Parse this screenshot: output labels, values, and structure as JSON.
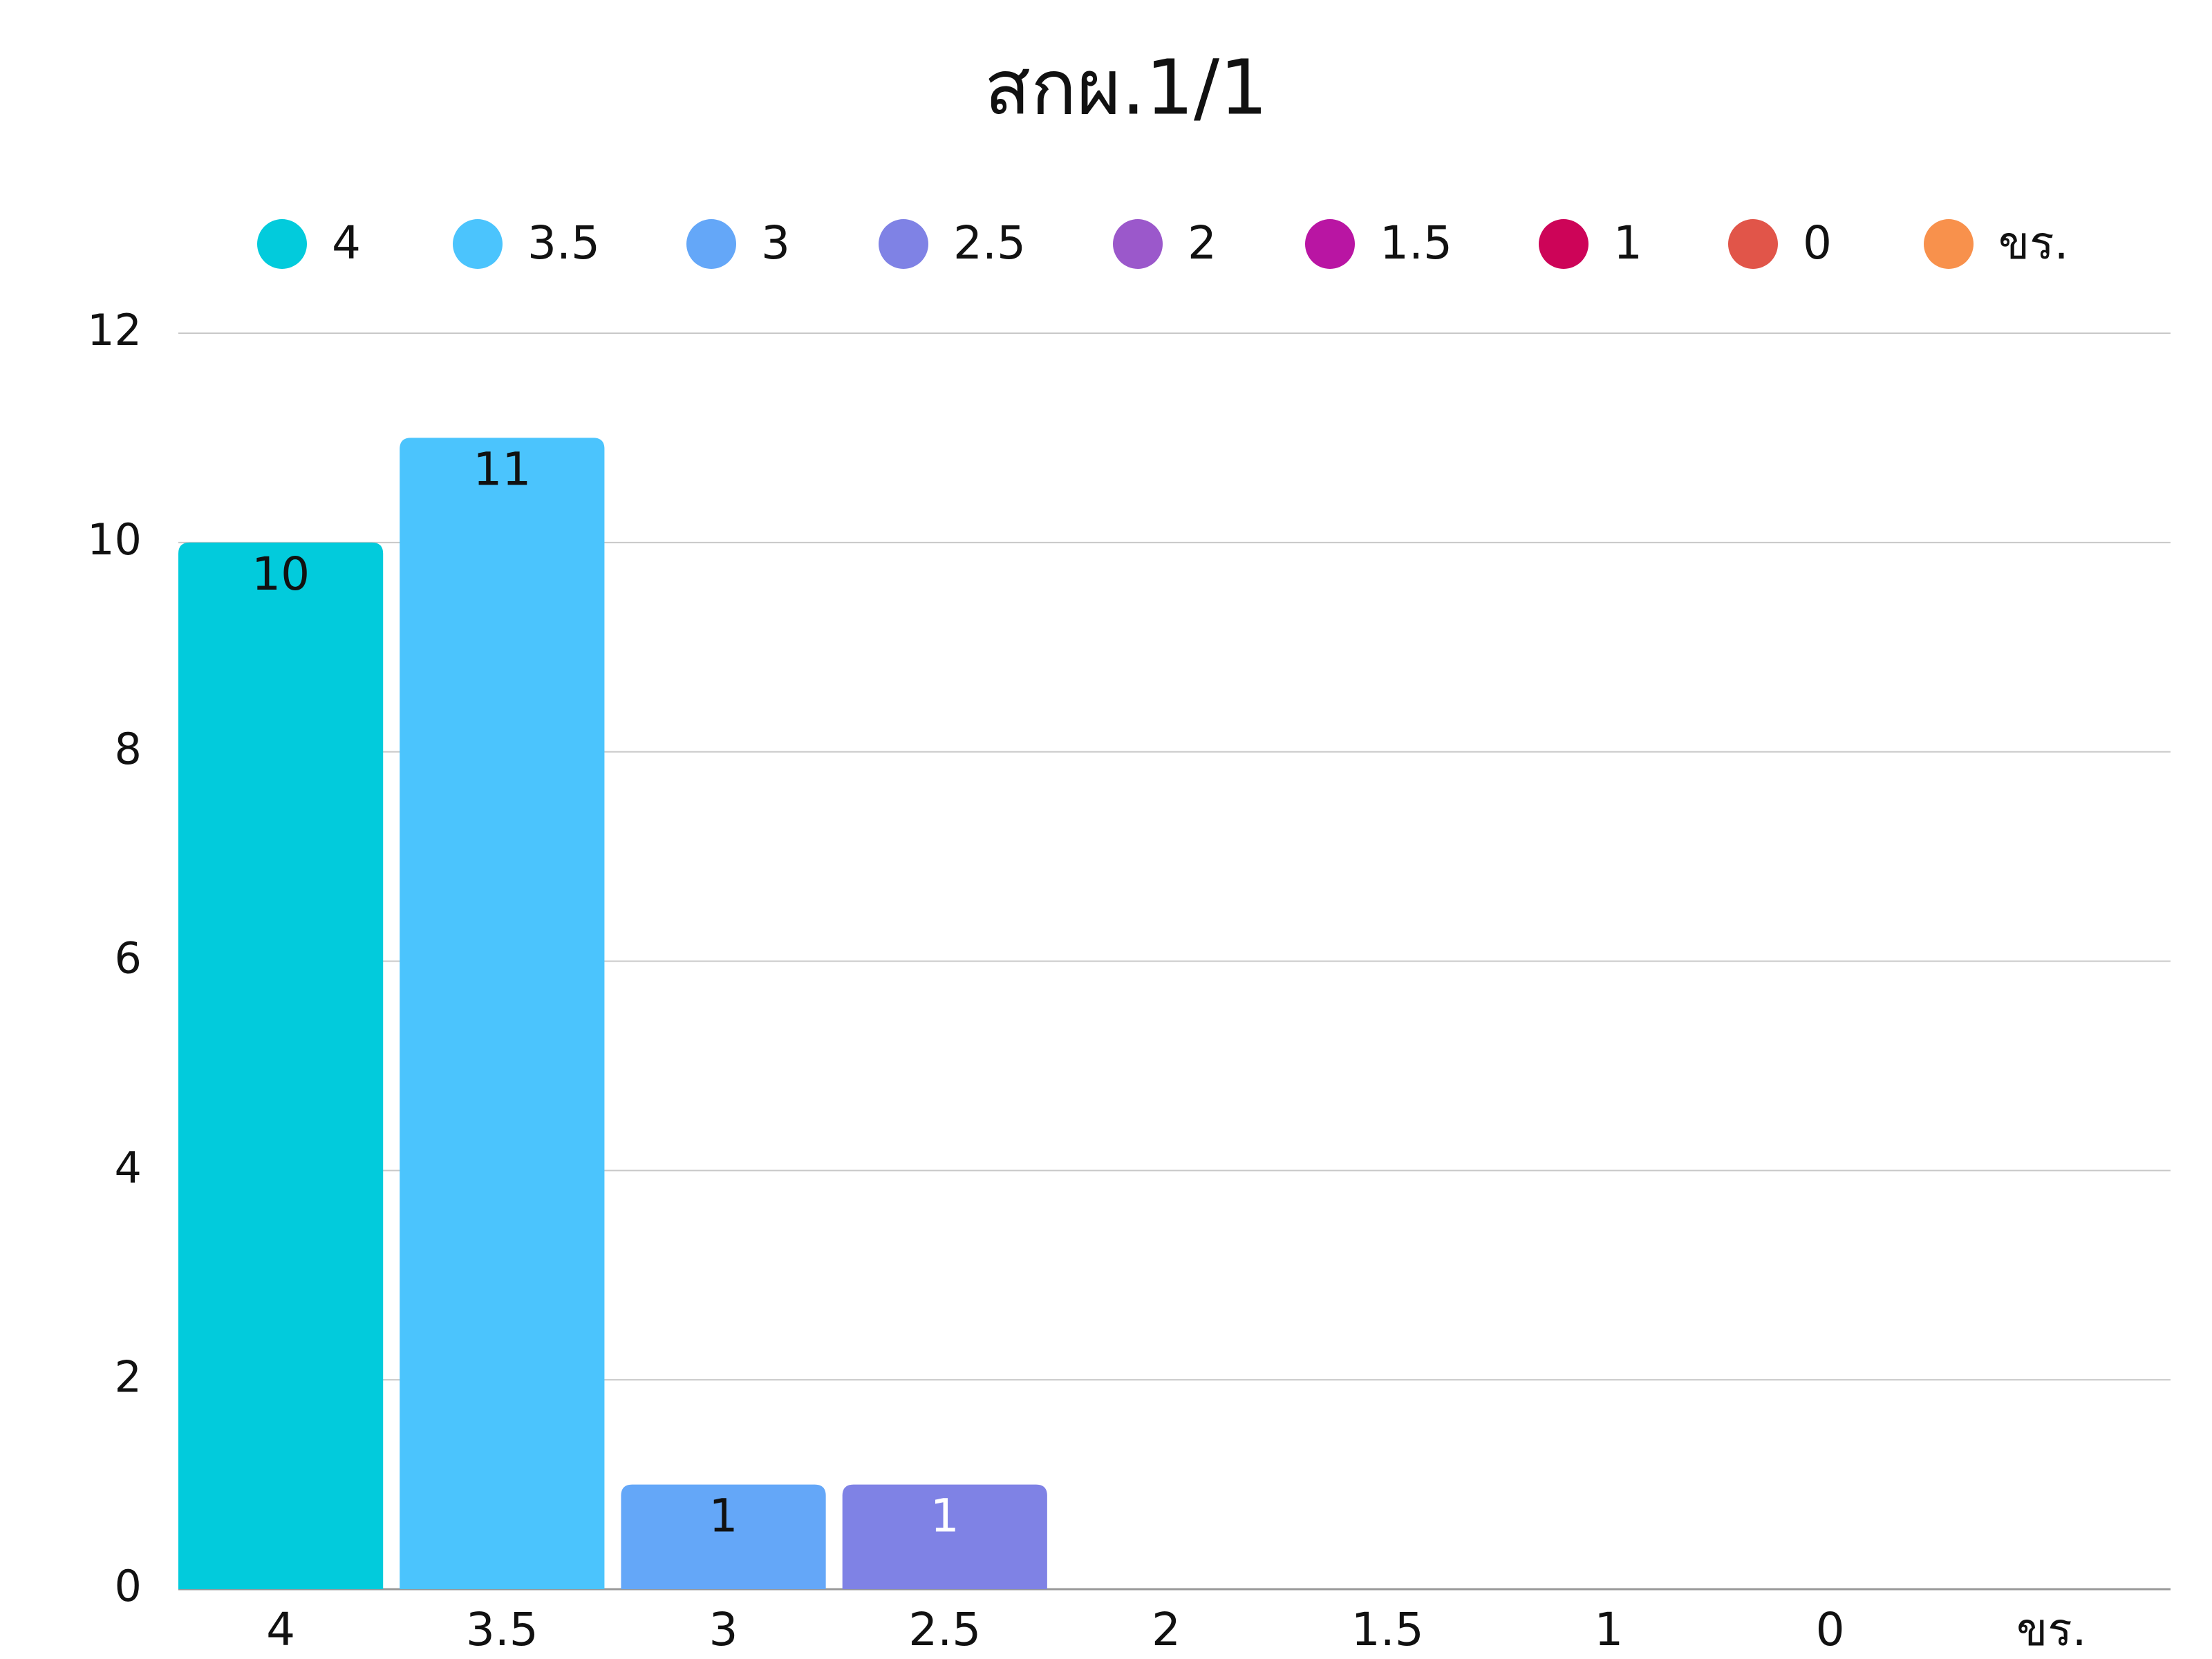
{
  "chart_data": {
    "type": "bar",
    "title": "สกผ.1/1",
    "categories": [
      "4",
      "3.5",
      "3",
      "2.5",
      "2",
      "1.5",
      "1",
      "0",
      "ขร."
    ],
    "values": [
      10,
      11,
      1,
      1,
      0,
      0,
      0,
      0,
      0
    ],
    "colors": [
      "#02cbdc",
      "#4bc4fd",
      "#64a7f8",
      "#7f82e5",
      "#9b58cb",
      "#b915a3",
      "#cd0458",
      "#e15549",
      "#f8914c"
    ],
    "label_colors": [
      "#111111",
      "#111111",
      "#111111",
      "#ffffff",
      "#111111",
      "#111111",
      "#111111",
      "#111111",
      "#111111"
    ],
    "ylim": [
      0,
      12
    ],
    "yticks": [
      0,
      2,
      4,
      6,
      8,
      10,
      12
    ],
    "grid": true,
    "legend": "top"
  }
}
